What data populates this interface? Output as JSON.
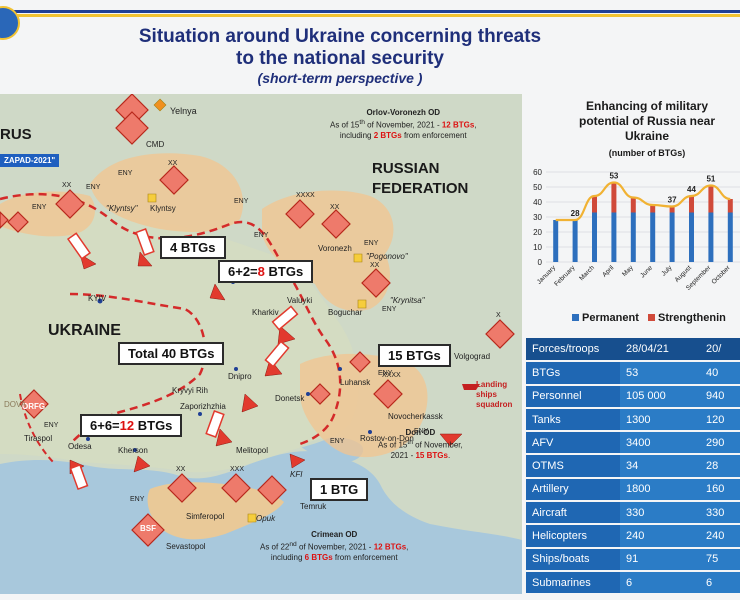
{
  "header": {
    "title_line1": "Situation around Ukraine concerning threats",
    "title_line2": "to the national security",
    "subtitle": "(short-term perspective )"
  },
  "map": {
    "boxes": {
      "btg4": "4 BTGs",
      "btg8_prefix": "6+2=",
      "btg8_red": "8",
      "btg8_suffix": " BTGs",
      "total40": "Total 40 BTGs",
      "btg15": "15 BTGs",
      "btg12_prefix": "6+6=",
      "btg12_red": "12",
      "btg12_suffix": " BTGs",
      "btg1": "1 BTG"
    },
    "regions": {
      "russian_federation_1": "RUSSIAN",
      "russian_federation_2": "FEDERATION",
      "ukraine": "UKRAINE",
      "belarus": "RUS",
      "zapad": "ZAPAD-2021\""
    },
    "districts": {
      "orlov_title": "Orlov-Voronezh OD",
      "orlov_line1_prefix": "As of 15",
      "orlov_line1_sup": "th",
      "orlov_line1_mid": " of November, 2021 - ",
      "orlov_line1_red": "12 BTGs",
      "orlov_line1_end": ",",
      "orlov_line2_prefix": "including ",
      "orlov_line2_red": "2 BTGs",
      "orlov_line2_end": " from enforcement",
      "don_title": "Don OD",
      "don_line1_prefix": "As of 15",
      "don_line1_sup": "th",
      "don_line1_end": " of November,",
      "don_line2_prefix": "2021 - ",
      "don_line2_red": "15 BTGs",
      "don_line2_end": ".",
      "crimean_title": "Crimean OD",
      "crimean_line1_prefix": "As of 22",
      "crimean_line1_sup": "nd",
      "crimean_line1_mid": " of November, 2021 - ",
      "crimean_line1_red": "12 BTGs",
      "crimean_line1_end": ",",
      "crimean_line2_prefix": "including ",
      "crimean_line2_red": "6 BTGs",
      "crimean_line2_end": " from enforcement"
    },
    "cities": {
      "yelnya": "Yelnya",
      "klyntsy": "Klyntsy",
      "klyntsy_q": "\"Klyntsy\"",
      "kyiv": "KYIV",
      "voronezh": "Voronezh",
      "pogonovo": "\"Pogonovo\"",
      "valuyki": "Valuyki",
      "kharkiv": "Kharkiv",
      "boguchar": "Boguchar",
      "krynitsa": "\"Krynitsa\"",
      "dnipro": "Dnipro",
      "kryvyi_rih": "Kryvyi Rih",
      "zaporizhzhia": "Zaporizhzhia",
      "luhansk": "Luhansk",
      "donetsk": "Donetsk",
      "novocherkassk": "Novocherkassk",
      "rostov": "Rostov-on-Don",
      "volgograd": "Volgograd",
      "odesa": "Odesa",
      "kherson": "Kherson",
      "melitopol": "Melitopol",
      "tiraspol": "Tiraspol",
      "simferopol": "Simferopol",
      "sevastopol": "Sevastopol",
      "temruk": "Temruk",
      "kfi": "KFI",
      "opuk": "Opuk",
      "cmd": "CMD",
      "landing_ships_1": "Landing",
      "landing_ships_2": "ships",
      "landing_ships_3": "squadron",
      "orfg": "ORFG",
      "bsf": "BSF",
      "doua": "DOVA"
    },
    "unit_tags": {
      "eny": "ENY",
      "xx": "XX",
      "xxx": "XXX",
      "xxxx": "XXXX",
      "x": "X"
    }
  },
  "chart_data": {
    "type": "bar",
    "title_line1": "Enhancing of military",
    "title_line2": "potential of Russia near",
    "title_line3": "Ukraine",
    "subtitle": "(number of BTGs)",
    "categories": [
      "January",
      "February",
      "March",
      "April",
      "May",
      "June",
      "July",
      "August",
      "September",
      "October"
    ],
    "series": [
      {
        "name": "Permanent",
        "values": [
          28,
          28,
          33,
          33,
          33,
          33,
          33,
          33,
          33,
          33
        ],
        "color": "#2d6fbd"
      },
      {
        "name": "Strengthening",
        "values": [
          0,
          0,
          11,
          20,
          10,
          5,
          4,
          11,
          18,
          9
        ],
        "color": "#d04a3a"
      }
    ],
    "line_values": [
      28,
      28,
      44,
      53,
      43,
      38,
      37,
      44,
      51,
      42
    ],
    "data_labels": {
      "1": "28",
      "3": "53",
      "6": "37",
      "7": "44",
      "8": "51"
    },
    "y_ticks": [
      "0",
      "10",
      "20",
      "30",
      "40",
      "50",
      "60"
    ],
    "ylim": [
      0,
      60
    ],
    "grid": true,
    "legend_permanent": "Permanent",
    "legend_strengthening": "Strengthenin",
    "line_color": "#f1b233"
  },
  "table": {
    "header": [
      "Forces/troops",
      "28/04/21",
      "20/"
    ],
    "rows": [
      [
        "BTGs",
        "53",
        "40"
      ],
      [
        "Personnel",
        "105 000",
        "940"
      ],
      [
        "Tanks",
        "1300",
        "120"
      ],
      [
        "AFV",
        "3400",
        "290"
      ],
      [
        "OTMS",
        "34",
        "28"
      ],
      [
        "Artillery",
        "1800",
        "160"
      ],
      [
        "Aircraft",
        "330",
        "330"
      ],
      [
        "Helicopters",
        "240",
        "240"
      ],
      [
        "Ships/boats",
        "91",
        "75"
      ],
      [
        "Submarines",
        "6",
        "6"
      ]
    ]
  }
}
